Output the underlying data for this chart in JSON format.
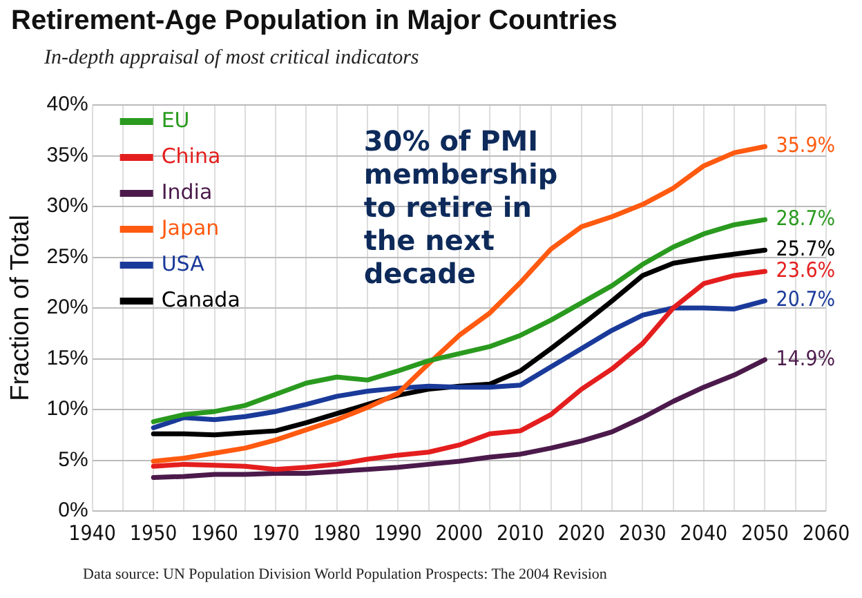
{
  "chart_data": {
    "type": "line",
    "title": "Retirement-Age Population in Major Countries",
    "subtitle": "In-depth appraisal of most critical indicators",
    "ylabel": "Fraction of Total",
    "annotations": [
      "30% of PMI membership to retire in the next decade",
      "Data source: UN Population Division World Population Prospects: The 2004 Revision"
    ],
    "x": [
      1950,
      1955,
      1960,
      1965,
      1970,
      1975,
      1980,
      1985,
      1990,
      1995,
      2000,
      2005,
      2010,
      2015,
      2020,
      2025,
      2030,
      2035,
      2040,
      2045,
      2050
    ],
    "series": [
      {
        "name": "EU",
        "color": "#2a9a1f",
        "values": [
          8.8,
          9.5,
          9.8,
          10.4,
          11.5,
          12.6,
          13.2,
          12.9,
          13.8,
          14.8,
          15.5,
          16.2,
          17.3,
          18.8,
          20.5,
          22.2,
          24.3,
          26,
          27.3,
          28.2,
          28.7
        ],
        "value_labels": [
          null,
          null,
          null,
          null,
          null,
          null,
          null,
          null,
          null,
          null,
          null,
          null,
          null,
          null,
          null,
          null,
          null,
          null,
          null,
          null,
          "28.7%"
        ]
      },
      {
        "name": "China",
        "color": "#e41e1e",
        "values": [
          4.4,
          4.6,
          4.5,
          4.4,
          4.1,
          4.3,
          4.6,
          5.1,
          5.5,
          5.8,
          6.5,
          7.6,
          7.9,
          9.5,
          12,
          14,
          16.5,
          20,
          22.4,
          23.2,
          23.6
        ],
        "value_labels": [
          null,
          null,
          null,
          null,
          null,
          null,
          null,
          null,
          null,
          null,
          null,
          null,
          null,
          null,
          null,
          null,
          null,
          null,
          null,
          null,
          "23.6%"
        ]
      },
      {
        "name": "India",
        "color": "#4b1a4b",
        "values": [
          3.3,
          3.4,
          3.6,
          3.6,
          3.7,
          3.7,
          3.9,
          4.1,
          4.3,
          4.6,
          4.9,
          5.3,
          5.6,
          6.2,
          6.9,
          7.8,
          9.2,
          10.8,
          12.2,
          13.4,
          14.9
        ],
        "value_labels": [
          null,
          null,
          null,
          null,
          null,
          null,
          null,
          null,
          null,
          null,
          null,
          null,
          null,
          null,
          null,
          null,
          null,
          null,
          null,
          null,
          "14.9%"
        ]
      },
      {
        "name": "Japan",
        "color": "#ff5a10",
        "values": [
          4.9,
          5.2,
          5.7,
          6.2,
          7,
          8,
          9,
          10.2,
          11.6,
          14.5,
          17.3,
          19.5,
          22.5,
          25.8,
          28,
          29,
          30.2,
          31.8,
          34,
          35.3,
          35.9
        ],
        "value_labels": [
          null,
          null,
          null,
          null,
          null,
          null,
          null,
          null,
          null,
          null,
          null,
          null,
          null,
          null,
          null,
          null,
          null,
          null,
          null,
          null,
          "35.9%"
        ]
      },
      {
        "name": "USA",
        "color": "#1a3a9a",
        "values": [
          8.2,
          9.2,
          9,
          9.3,
          9.8,
          10.5,
          11.3,
          11.8,
          12.1,
          12.3,
          12.2,
          12.2,
          12.4,
          14.2,
          16,
          17.8,
          19.3,
          20,
          20,
          19.9,
          20.7
        ],
        "value_labels": [
          null,
          null,
          null,
          null,
          null,
          null,
          null,
          null,
          null,
          null,
          null,
          null,
          null,
          null,
          null,
          null,
          null,
          null,
          null,
          null,
          "20.7%"
        ]
      },
      {
        "name": "Canada",
        "color": "#000000",
        "values": [
          7.6,
          7.6,
          7.5,
          7.7,
          7.9,
          8.7,
          9.6,
          10.5,
          11.4,
          12,
          12.3,
          12.5,
          13.8,
          16,
          18.3,
          20.7,
          23.2,
          24.4,
          24.9,
          25.3,
          25.7
        ],
        "value_labels": [
          null,
          null,
          null,
          null,
          null,
          null,
          null,
          null,
          null,
          null,
          null,
          null,
          null,
          null,
          null,
          null,
          null,
          null,
          null,
          null,
          "25.7%"
        ]
      }
    ],
    "xlim": [
      1940,
      2060
    ],
    "xticks": [
      1940,
      {
        "value": 1945,
        "label": null
      },
      1950,
      {
        "value": 1955,
        "label": null
      },
      1960,
      {
        "value": 1965,
        "label": null
      },
      1970,
      {
        "value": 1975,
        "label": null
      },
      1980,
      {
        "value": 1985,
        "label": null
      },
      1990,
      {
        "value": 1995,
        "label": null
      },
      2000,
      {
        "value": 2005,
        "label": null
      },
      2010,
      {
        "value": 2015,
        "label": null
      },
      2020,
      {
        "value": 2025,
        "label": null
      },
      2030,
      {
        "value": 2035,
        "label": null
      },
      2040,
      {
        "value": 2045,
        "label": null
      },
      2050,
      {
        "value": 2055,
        "label": null
      },
      2060
    ],
    "ylim": [
      0,
      40
    ],
    "yticks": [
      {
        "value": 0,
        "label": "0%"
      },
      {
        "value": 5,
        "label": "5%"
      },
      {
        "value": 10,
        "label": "10%"
      },
      {
        "value": 15,
        "label": "15%"
      },
      {
        "value": 20,
        "label": "20%"
      },
      {
        "value": 25,
        "label": "25%"
      },
      {
        "value": 30,
        "label": "30%"
      },
      {
        "value": 35,
        "label": "35%"
      },
      {
        "value": 40,
        "label": "40%"
      }
    ],
    "grid": true,
    "legend": "top left",
    "marker": "none",
    "line_style": "solid"
  }
}
